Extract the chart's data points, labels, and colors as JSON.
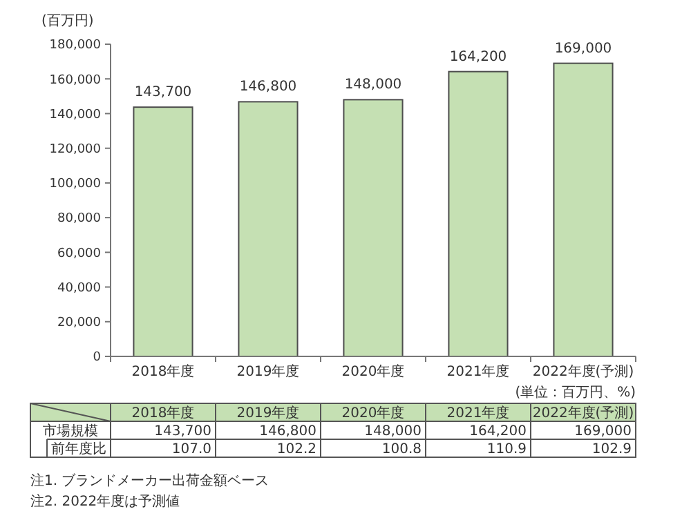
{
  "chart_data": {
    "type": "bar",
    "ylabel": "(百万円)",
    "categories": [
      "2018年度",
      "2019年度",
      "2020年度",
      "2021年度",
      "2022年度(予測)"
    ],
    "values": [
      143700,
      146800,
      148000,
      164200,
      169000
    ],
    "color": "#c5e0b3",
    "ylim": [
      0,
      180000
    ],
    "yticks": [
      {
        "value": 0,
        "label": "0"
      },
      {
        "value": 20000,
        "label": "20,000"
      },
      {
        "value": 40000,
        "label": "40,000"
      },
      {
        "value": 60000,
        "label": "60,000"
      },
      {
        "value": 80000,
        "label": "80,000"
      },
      {
        "value": 100000,
        "label": "100,000"
      },
      {
        "value": 120000,
        "label": "120,000"
      },
      {
        "value": 140000,
        "label": "140,000"
      },
      {
        "value": 160000,
        "label": "160,000"
      },
      {
        "value": 180000,
        "label": "180,000"
      }
    ],
    "value_labels": [
      "143,700",
      "146,800",
      "148,000",
      "164,200",
      "169,000"
    ],
    "grid": false,
    "annotations": [
      "(単位：百万円、%)",
      "市場規模",
      "前年度比",
      "107.0",
      "102.2",
      "100.8",
      "110.9",
      "102.9",
      "注1. ブランドメーカー出荷金額ベース",
      "注2. 2022年度は予測値"
    ]
  }
}
